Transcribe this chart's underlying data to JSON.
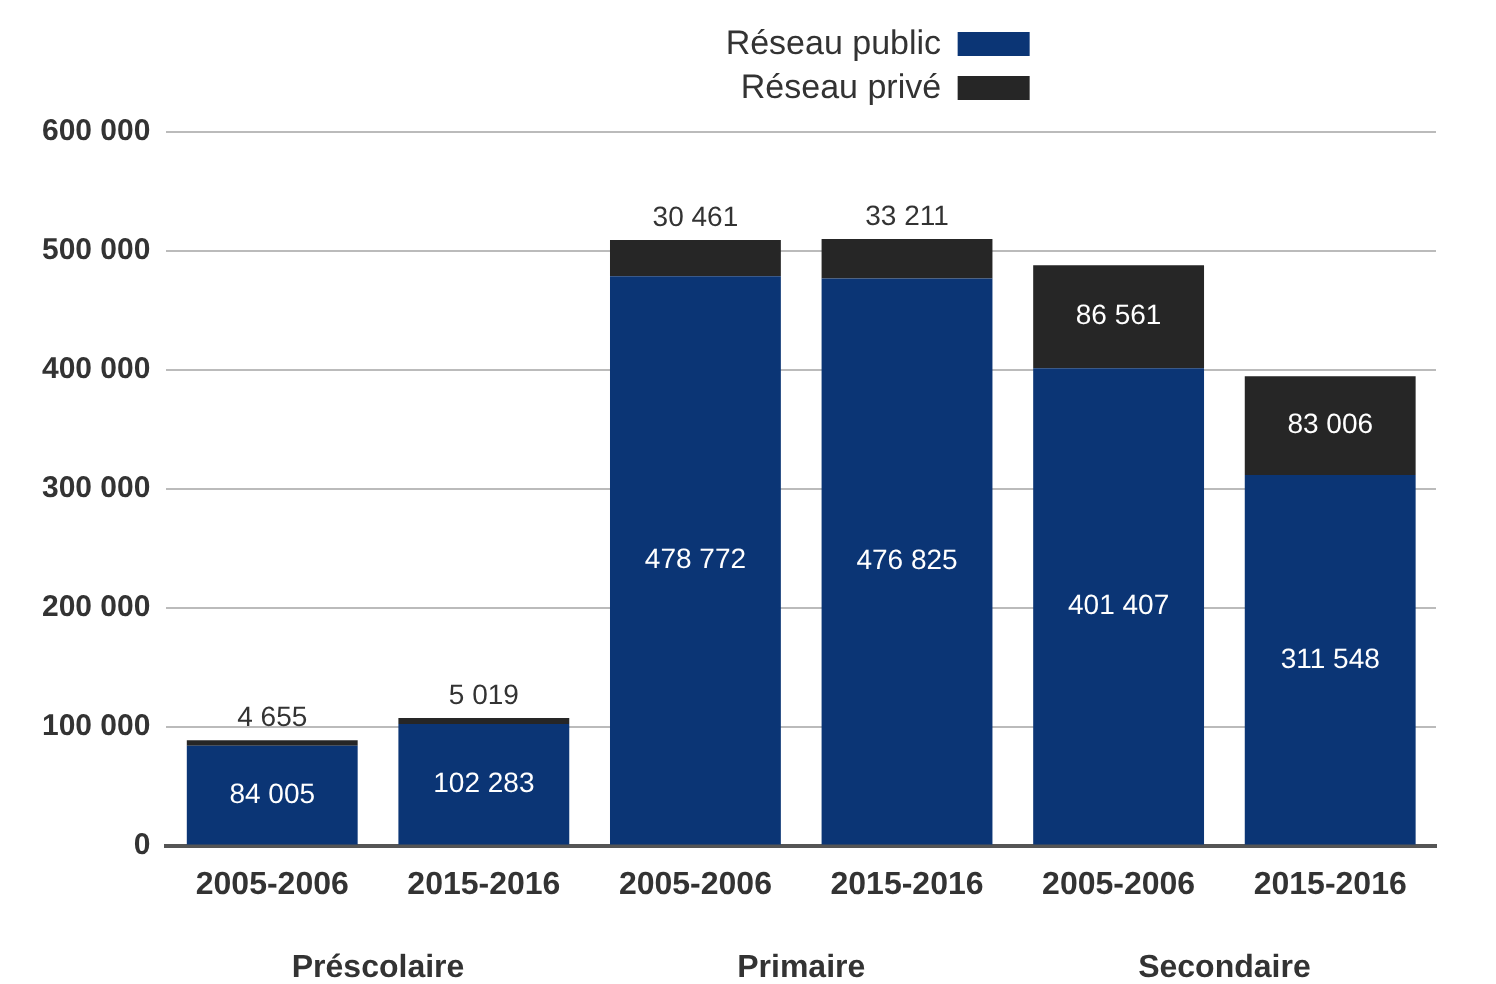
{
  "chart_data": {
    "type": "bar",
    "stacked": true,
    "categories": [
      "2005-2006",
      "2015-2016",
      "2005-2006",
      "2015-2016",
      "2005-2006",
      "2015-2016"
    ],
    "series": [
      {
        "name": "Réseau public",
        "color": "#0b3575",
        "values": [
          84005,
          102283,
          478772,
          476825,
          401407,
          311548
        ],
        "value_labels": [
          "84 005",
          "102 283",
          "478 772",
          "476 825",
          "401 407",
          "311 548"
        ]
      },
      {
        "name": "Réseau privé",
        "color": "#262626",
        "values": [
          4655,
          5019,
          30461,
          33211,
          86561,
          83006
        ],
        "value_labels": [
          "4 655",
          "5 019",
          "30 461",
          "33 211",
          "86 561",
          "83 006"
        ]
      }
    ],
    "annotations": [
      "Préscolaire",
      "Primaire",
      "Secondaire"
    ],
    "ylim": [
      0,
      600000
    ],
    "yticks": [
      {
        "value": 0,
        "label": "0"
      },
      {
        "value": 100000,
        "label": "100 000"
      },
      {
        "value": 200000,
        "label": "200 000"
      },
      {
        "value": 300000,
        "label": "300 000"
      },
      {
        "value": 400000,
        "label": "400 000"
      },
      {
        "value": 500000,
        "label": "500 000"
      },
      {
        "value": 600000,
        "label": "600 000"
      }
    ],
    "grid": "y",
    "legend": "top"
  }
}
